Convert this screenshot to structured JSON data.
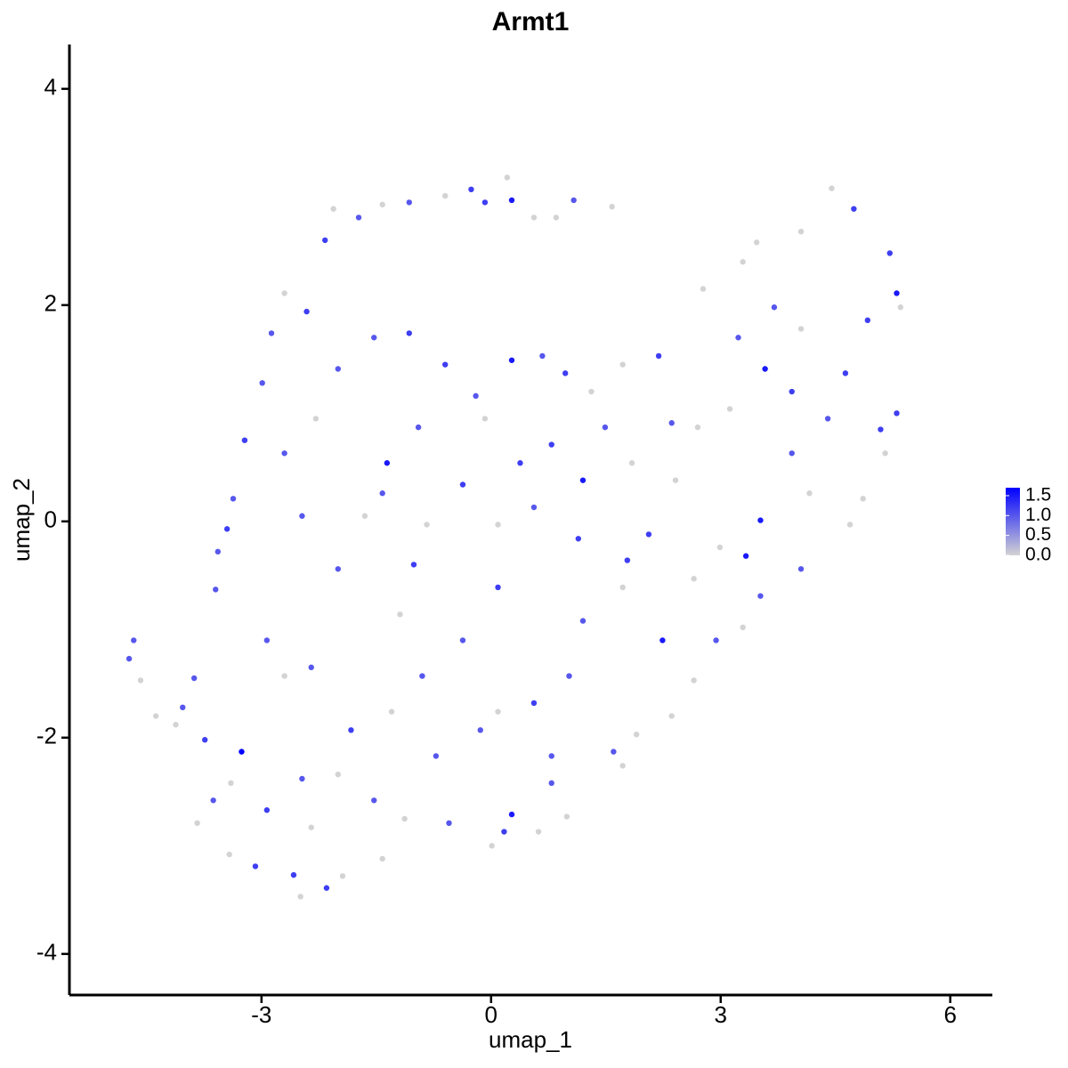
{
  "chart_data": {
    "type": "scatter",
    "title": "Armt1",
    "x_label": "umap_1",
    "y_label": "umap_2",
    "xlim": [
      -5.51,
      6.55
    ],
    "ylim": [
      -4.38,
      4.41
    ],
    "xticks": [
      -3,
      0,
      3,
      6
    ],
    "yticks": [
      -4,
      -2,
      0,
      2,
      4
    ],
    "low_color": "#d3d3d3",
    "high_color": "#0000ff",
    "clim": [
      0,
      1.7
    ],
    "cticks": [
      {
        "value": 0,
        "label": "0.0"
      },
      {
        "value": 0.5,
        "label": "0.5"
      },
      {
        "value": 1,
        "label": "1.0"
      },
      {
        "value": 1.5,
        "label": "1.5"
      }
    ],
    "x": [
      -4.67,
      -4.73,
      -4.58,
      -4.38,
      -3.26,
      -3.74,
      -3.88,
      -4.03,
      -4.12,
      -3.84,
      -3.42,
      -3.08,
      -2.58,
      -2.49,
      -2.15,
      -1.94,
      -2.93,
      -2.47,
      -3.6,
      -3.57,
      -3.45,
      -3.37,
      -3.22,
      -2.99,
      -2.87,
      -2.7,
      -2.41,
      -2.17,
      -2.06,
      -1.73,
      -1.42,
      -1.07,
      -0.6,
      -0.26,
      -0.08,
      0.21,
      0.27,
      0.56,
      0.85,
      1.08,
      1.58,
      2.77,
      3.29,
      3.47,
      4.05,
      4.45,
      4.74,
      5.21,
      5.3,
      5.35,
      5.3,
      5.09,
      5.15,
      4.86,
      4.69,
      4.05,
      3.52,
      3.33,
      3.52,
      3.29,
      2.94,
      2.65,
      2.36,
      1.9,
      1.6,
      0.99,
      0.62,
      0.27,
      0.17,
      0.01,
      -0.55,
      -1.13,
      -1.42,
      -0.72,
      -0.14,
      0.56,
      1.02,
      1.2,
      1.72,
      2.24,
      1.78,
      1.14,
      0.56,
      0.09,
      -0.37,
      -0.08,
      -0.84,
      -1.01,
      -1.42,
      -1.65,
      -2,
      -2.47,
      -2.7,
      -2.29,
      -2,
      -1.53,
      -1.07,
      -0.6,
      -0.2,
      0.27,
      0.67,
      0.97,
      1.31,
      1.72,
      2.19,
      2.36,
      1.84,
      1.49,
      0.79,
      1.2,
      0.38,
      -0.95,
      -1.36,
      0.09,
      -0.37,
      -0.9,
      -1.3,
      -1.83,
      -2,
      -1.53,
      -2.93,
      -2.7,
      -2.35,
      3.58,
      3.93,
      4.4,
      4.63,
      4.92,
      4.05,
      3.7,
      3.23,
      3.12,
      3.93,
      4.16,
      2.7,
      2.41,
      2.06,
      2.65,
      2.99,
      0.09,
      0.79,
      1.72,
      0.79,
      -3.4,
      -3.63,
      -2.35,
      -1.19
    ],
    "y": [
      -1.1,
      -1.27,
      -1.47,
      -1.8,
      -2.13,
      -2.02,
      -1.45,
      -1.72,
      -1.88,
      -2.79,
      -3.08,
      -3.19,
      -3.27,
      -3.47,
      -3.39,
      -3.28,
      -2.67,
      -2.38,
      -0.63,
      -0.28,
      -0.07,
      0.21,
      0.75,
      1.28,
      1.74,
      2.11,
      1.94,
      2.6,
      2.89,
      2.81,
      2.93,
      2.95,
      3.01,
      3.07,
      2.95,
      3.18,
      2.97,
      2.81,
      2.81,
      2.97,
      2.91,
      2.15,
      2.4,
      2.58,
      2.68,
      3.08,
      2.89,
      2.48,
      2.11,
      1.98,
      1,
      0.85,
      0.63,
      0.21,
      -0.03,
      -0.44,
      0.01,
      -0.32,
      -0.69,
      -0.98,
      -1.1,
      -1.47,
      -1.8,
      -1.97,
      -2.13,
      -2.73,
      -2.87,
      -2.71,
      -2.87,
      -3,
      -2.79,
      -2.75,
      -3.12,
      -2.17,
      -1.93,
      -1.68,
      -1.43,
      -0.92,
      -0.61,
      -1.1,
      -0.36,
      -0.16,
      0.13,
      -0.03,
      0.34,
      0.95,
      -0.03,
      -0.4,
      0.26,
      0.05,
      -0.44,
      0.05,
      0.63,
      0.95,
      1.41,
      1.7,
      1.74,
      1.45,
      1.16,
      1.49,
      1.53,
      1.37,
      1.2,
      1.45,
      1.53,
      0.91,
      0.54,
      0.87,
      0.71,
      0.38,
      0.54,
      0.87,
      0.54,
      -0.61,
      -1.1,
      -1.43,
      -1.76,
      -1.93,
      -2.34,
      -2.58,
      -1.1,
      -1.43,
      -1.35,
      1.41,
      1.2,
      0.95,
      1.37,
      1.86,
      1.78,
      1.98,
      1.7,
      1.04,
      0.63,
      0.26,
      0.87,
      0.38,
      -0.12,
      -0.53,
      -0.24,
      -1.76,
      -2.17,
      -2.26,
      -2.42,
      -2.42,
      -2.58,
      -2.83,
      -0.86
    ],
    "values": [
      1,
      1,
      0,
      0,
      1.7,
      1.2,
      1,
      1,
      0,
      0,
      0,
      1.2,
      1.2,
      0,
      1.2,
      0,
      1.2,
      1,
      1,
      1,
      1.2,
      1,
      1.2,
      1,
      1,
      0,
      1.2,
      1.2,
      0,
      1,
      0,
      1,
      0,
      1.2,
      1.2,
      0,
      1.5,
      0,
      0,
      1,
      0,
      0,
      0,
      0,
      0,
      0,
      1.2,
      1.2,
      1.5,
      0,
      1.2,
      1.2,
      0,
      0,
      0,
      1,
      1.5,
      1.5,
      1,
      0,
      1,
      0,
      0,
      0,
      1,
      0,
      0,
      1.5,
      1.2,
      0,
      1,
      0,
      0,
      1,
      1,
      1.2,
      1,
      1,
      0,
      1.5,
      1.2,
      1.2,
      1,
      0,
      1.2,
      0,
      0,
      1.2,
      1,
      0,
      1,
      1,
      1,
      0,
      1,
      1,
      1.2,
      1.2,
      1,
      1.5,
      1,
      1.2,
      0,
      0,
      1.2,
      1,
      0,
      1,
      1.2,
      1.5,
      1.2,
      1,
      1.5,
      1.2,
      1,
      1,
      0,
      1.2,
      0,
      1,
      1,
      0,
      1,
      1.5,
      1.2,
      1,
      1.2,
      1.2,
      0,
      1,
      1,
      0,
      1,
      0,
      0,
      0,
      1.2,
      0,
      0,
      0,
      1,
      0,
      1,
      0,
      1,
      0,
      0
    ]
  }
}
